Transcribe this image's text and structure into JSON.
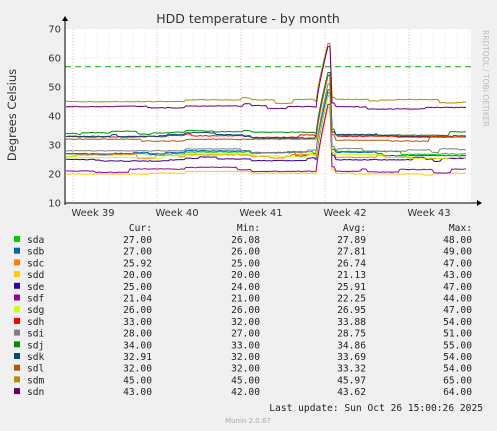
{
  "title": "HDD temperature - by month",
  "side_label": "RRDTOOL / TOBI OETIKER",
  "footer_version": "Munin 2.0.67",
  "last_update": "Last update: Sun Oct 26 15:00:26 2025",
  "table_headers": {
    "cur": "Cur:",
    "min": "Min:",
    "avg": "Avg:",
    "max": "Max:"
  },
  "chart_data": {
    "type": "line",
    "title": "HDD temperature - by month",
    "ylabel": "Degrees Celsius",
    "ylim": [
      10,
      70
    ],
    "yticks": [
      10,
      20,
      30,
      40,
      50,
      60,
      70
    ],
    "xticks": [
      "Week 39",
      "Week 40",
      "Week 41",
      "Week 42",
      "Week 43"
    ],
    "warning_line": 57,
    "grid": true,
    "series": [
      {
        "name": "sda",
        "color": "#00cc00",
        "cur": "27.00",
        "min": "26.08",
        "avg": "27.89",
        "max": "48.00",
        "base": 27,
        "peak": 48
      },
      {
        "name": "sdb",
        "color": "#0066b3",
        "cur": "27.00",
        "min": "26.00",
        "avg": "27.81",
        "max": "49.00",
        "base": 27,
        "peak": 49
      },
      {
        "name": "sdc",
        "color": "#ff8000",
        "cur": "25.92",
        "min": "25.00",
        "avg": "26.74",
        "max": "47.00",
        "base": 26,
        "peak": 47
      },
      {
        "name": "sdd",
        "color": "#ffcc00",
        "cur": "20.00",
        "min": "20.00",
        "avg": "21.13",
        "max": "43.00",
        "base": 20,
        "peak": 43
      },
      {
        "name": "sde",
        "color": "#330099",
        "cur": "25.00",
        "min": "24.00",
        "avg": "25.91",
        "max": "47.00",
        "base": 25,
        "peak": 47
      },
      {
        "name": "sdf",
        "color": "#990099",
        "cur": "21.04",
        "min": "21.00",
        "avg": "22.25",
        "max": "44.00",
        "base": 21,
        "peak": 44
      },
      {
        "name": "sdg",
        "color": "#ccff00",
        "cur": "26.00",
        "min": "26.00",
        "avg": "26.95",
        "max": "47.00",
        "base": 26,
        "peak": 47
      },
      {
        "name": "sdh",
        "color": "#ff0000",
        "cur": "33.00",
        "min": "32.00",
        "avg": "33.88",
        "max": "54.00",
        "base": 33,
        "peak": 54
      },
      {
        "name": "sdi",
        "color": "#808080",
        "cur": "28.00",
        "min": "27.00",
        "avg": "28.75",
        "max": "51.00",
        "base": 28,
        "peak": 51
      },
      {
        "name": "sdj",
        "color": "#008f00",
        "cur": "34.00",
        "min": "33.00",
        "avg": "34.86",
        "max": "55.00",
        "base": 34,
        "peak": 55
      },
      {
        "name": "sdk",
        "color": "#00487d",
        "cur": "32.91",
        "min": "32.00",
        "avg": "33.69",
        "max": "54.00",
        "base": 33,
        "peak": 54
      },
      {
        "name": "sdl",
        "color": "#b35a00",
        "cur": "32.00",
        "min": "32.00",
        "avg": "33.32",
        "max": "54.00",
        "base": 32,
        "peak": 54
      },
      {
        "name": "sdm",
        "color": "#b38f00",
        "cur": "45.00",
        "min": "45.00",
        "avg": "45.97",
        "max": "65.00",
        "base": 45,
        "peak": 65
      },
      {
        "name": "sdn",
        "color": "#6b006b",
        "cur": "43.00",
        "min": "42.00",
        "avg": "43.62",
        "max": "64.00",
        "base": 43,
        "peak": 64
      }
    ]
  }
}
